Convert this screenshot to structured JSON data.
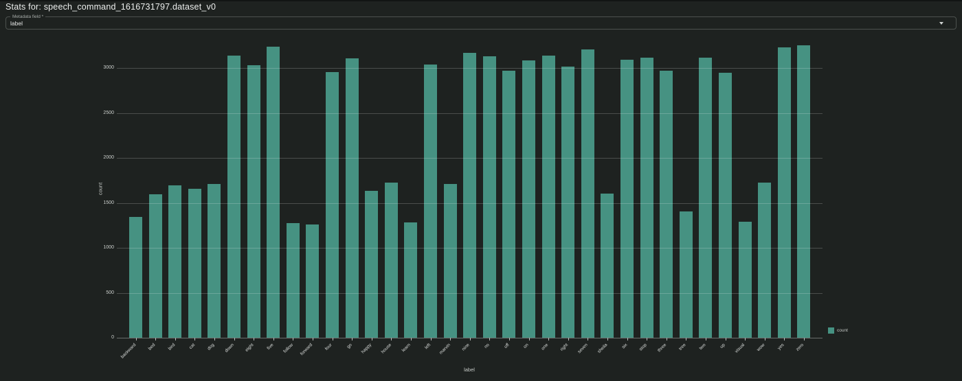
{
  "header": {
    "title": "Stats for: speech_command_1616731797.dataset_v0"
  },
  "field": {
    "label": "Metadata field *",
    "value": "label"
  },
  "legend": {
    "count_label": "count"
  },
  "colors": {
    "background": "#1e2220",
    "bar": "#469282",
    "gridline": "rgba(255,255,255,0.20)"
  },
  "chart_data": {
    "type": "bar",
    "title": "",
    "xlabel": "label",
    "ylabel": "count",
    "legend_entries": [
      "count"
    ],
    "legend_position": "bottom-right",
    "grid": true,
    "bar_color": "#469282",
    "yticks": [
      0,
      500,
      1000,
      1500,
      2000,
      2500,
      3000
    ],
    "ylim": [
      0,
      3300
    ],
    "categories": [
      "backward",
      "bed",
      "bird",
      "cat",
      "dog",
      "down",
      "eight",
      "five",
      "follow",
      "forward",
      "four",
      "go",
      "happy",
      "house",
      "learn",
      "left",
      "marvin",
      "nine",
      "no",
      "off",
      "on",
      "one",
      "right",
      "seven",
      "sheila",
      "six",
      "stop",
      "three",
      "tree",
      "two",
      "up",
      "visual",
      "wow",
      "yes",
      "zero"
    ],
    "values": [
      1346,
      1594,
      1697,
      1657,
      1711,
      3134,
      3033,
      3240,
      1275,
      1256,
      2955,
      3106,
      1632,
      1727,
      1286,
      3037,
      1710,
      3170,
      3130,
      2970,
      3086,
      3140,
      3019,
      3205,
      1606,
      3088,
      3111,
      2966,
      1407,
      3111,
      2948,
      1288,
      1724,
      3228,
      3250
    ]
  }
}
